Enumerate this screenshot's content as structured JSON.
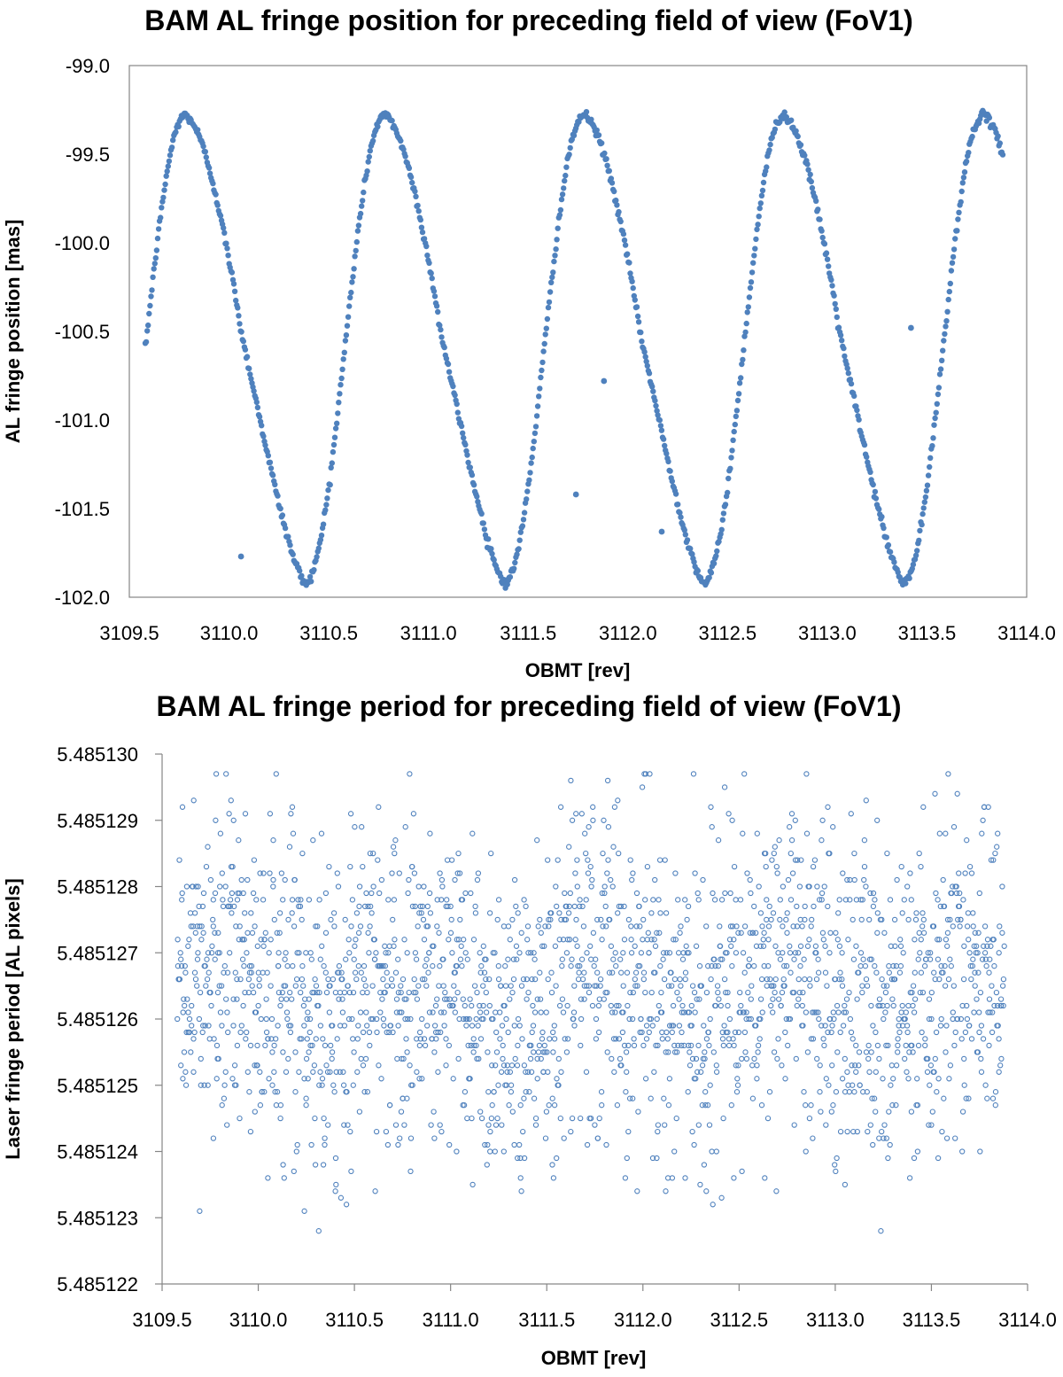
{
  "chart_data": [
    {
      "type": "scatter",
      "title": "BAM AL fringe position for preceding field of view (FoV1)",
      "xlabel": "OBMT [rev]",
      "ylabel": "AL fringe position [mas]",
      "xlim": [
        3109.5,
        3114.0
      ],
      "ylim": [
        -102.0,
        -99.0
      ],
      "xticks": [
        "3109.5",
        "3110.0",
        "3110.5",
        "3111.0",
        "3111.5",
        "3112.0",
        "3112.5",
        "3113.0",
        "3113.5",
        "3114.0"
      ],
      "yticks": [
        "-99.0",
        "-99.5",
        "-100.0",
        "-100.5",
        "-101.0",
        "-101.5",
        "-102.0"
      ],
      "grid": false,
      "legend": "none",
      "marker": "filled-circle",
      "color": "#4f81bd",
      "series_description": {
        "x_range": [
          3109.58,
          3113.88
        ],
        "period_rev": 1.0,
        "maximum_value": -99.28,
        "minimum_value": -101.92,
        "maxima_x": [
          3109.78,
          3110.78,
          3111.78,
          3112.78,
          3113.78
        ],
        "minima_x": [
          3110.38,
          3111.38,
          3112.38,
          3113.38
        ]
      },
      "outliers": [
        {
          "x": 3110.06,
          "y": -101.77
        },
        {
          "x": 3111.74,
          "y": -101.42
        },
        {
          "x": 3111.88,
          "y": -100.78
        },
        {
          "x": 3112.17,
          "y": -101.63
        },
        {
          "x": 3113.42,
          "y": -100.48
        }
      ]
    },
    {
      "type": "scatter",
      "title": "BAM AL fringe period for preceding field of view (FoV1)",
      "xlabel": "OBMT [rev]",
      "ylabel": "Laser fringe period [AL pixels]",
      "xlim": [
        3109.5,
        3114.0
      ],
      "ylim": [
        5.485122,
        5.48513
      ],
      "xticks": [
        "3109.5",
        "3110.0",
        "3110.5",
        "3111.0",
        "3111.5",
        "3112.0",
        "3112.5",
        "3113.0",
        "3113.5",
        "3114.0"
      ],
      "yticks": [
        "5.485130",
        "5.485129",
        "5.485128",
        "5.485127",
        "5.485126",
        "5.485125",
        "5.485124",
        "5.485123",
        "5.485122"
      ],
      "grid": false,
      "legend": "none",
      "marker": "open-circle",
      "color": "#4f81bd",
      "series_description": {
        "x_range": [
          3109.58,
          3113.88
        ],
        "y_center": 5.4851264,
        "y_min": 5.4851228,
        "y_max": 5.4851297
      }
    }
  ]
}
